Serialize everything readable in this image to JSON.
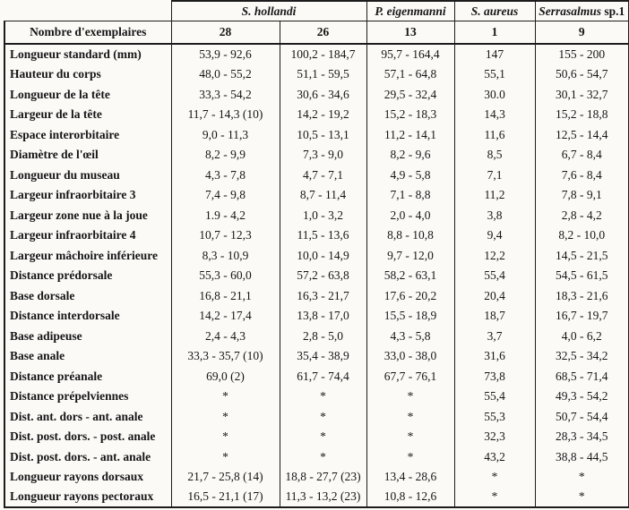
{
  "table": {
    "species_header": [
      {
        "italic": "S. hollandi",
        "plain": "",
        "span": 2
      },
      {
        "italic": "P. eigenmanni",
        "plain": "",
        "span": 1
      },
      {
        "italic": "S. aureus",
        "plain": "",
        "span": 1
      },
      {
        "italic": "Serrasalmus",
        "plain": " sp.1",
        "span": 1
      }
    ],
    "count_label": "Nombre d'exemplaires",
    "count_values": [
      "28",
      "26",
      "13",
      "1",
      "9"
    ],
    "rows": [
      {
        "label": "Longueur standard (mm)",
        "values": [
          "53,9 - 92,6",
          "100,2 - 184,7",
          "95,7 - 164,4",
          "147",
          "155 - 200"
        ]
      },
      {
        "label": "Hauteur du corps",
        "values": [
          "48,0 - 55,2",
          "51,1 - 59,5",
          "57,1 - 64,8",
          "55,1",
          "50,6 - 54,7"
        ]
      },
      {
        "label": "Longueur de la tête",
        "values": [
          "33,3 - 54,2",
          "30,6 - 34,6",
          "29,5 - 32,4",
          "30.0",
          "30,1 - 32,7"
        ]
      },
      {
        "label": "Largeur de la tête",
        "values": [
          "11,7 - 14,3 (10)",
          "14,2 - 19,2",
          "15,2 - 18,3",
          "14,3",
          "15,2 - 18,8"
        ]
      },
      {
        "label": "Espace interorbitaire",
        "values": [
          "9,0 - 11,3",
          "10,5 - 13,1",
          "11,2 - 14,1",
          "11,6",
          "12,5 - 14,4"
        ]
      },
      {
        "label": "Diamètre de l'œil",
        "values": [
          "8,2 - 9,9",
          "7,3 - 9,0",
          "8,2 - 9,6",
          "8,5",
          "6,7 - 8,4"
        ]
      },
      {
        "label": "Longueur du museau",
        "values": [
          "4,3 - 7,8",
          "4,7 - 7,1",
          "4,9 - 5,8",
          "7,1",
          "7,6 - 8,4"
        ]
      },
      {
        "label": "Largeur infraorbitaire 3",
        "values": [
          "7,4 - 9,8",
          "8,7 - 11,4",
          "7,1 - 8,8",
          "11,2",
          "7,8 - 9,1"
        ]
      },
      {
        "label": "Largeur zone nue à la joue",
        "values": [
          "1.9 - 4,2",
          "1,0 - 3,2",
          "2,0 - 4,0",
          "3,8",
          "2,8 - 4,2"
        ]
      },
      {
        "label": "Largeur infraorbitaire 4",
        "values": [
          "10,7 - 12,3",
          "11,5 - 13,6",
          "8,8 - 10,8",
          "9,4",
          "8,2 - 10,0"
        ]
      },
      {
        "label": "Largeur mâchoire inférieure",
        "values": [
          "8,3 - 10,9",
          "10,0 - 14,9",
          "9,7 - 12,0",
          "12,2",
          "14,5 - 21,5"
        ]
      },
      {
        "label": "Distance prédorsale",
        "values": [
          "55,3 - 60,0",
          "57,2 - 63,8",
          "58,2 - 63,1",
          "55,4",
          "54,5 - 61,5"
        ]
      },
      {
        "label": "Base dorsale",
        "values": [
          "16,8 - 21,1",
          "16,3 - 21,7",
          "17,6 - 20,2",
          "20,4",
          "18,3 - 21,6"
        ]
      },
      {
        "label": "Distance interdorsale",
        "values": [
          "14,2 - 17,4",
          "13,8 - 17,0",
          "15,5 - 18,9",
          "18,7",
          "16,7 - 19,7"
        ]
      },
      {
        "label": "Base adipeuse",
        "values": [
          "2,4 - 4,3",
          "2,8 - 5,0",
          "4,3 - 5,8",
          "3,7",
          "4,0 - 6,2"
        ]
      },
      {
        "label": "Base anale",
        "values": [
          "33,3 - 35,7 (10)",
          "35,4 - 38,9",
          "33,0 - 38,0",
          "31,6",
          "32,5 - 34,2"
        ]
      },
      {
        "label": "Distance préanale",
        "values": [
          "69,0 (2)",
          "61,7 - 74,4",
          "67,7 - 76,1",
          "73,8",
          "68,5 - 71,4"
        ]
      },
      {
        "label": "Distance prépelviennes",
        "values": [
          "*",
          "*",
          "*",
          "55,4",
          "49,3 - 54,2"
        ]
      },
      {
        "label": "Dist. ant. dors - ant. anale",
        "values": [
          "*",
          "*",
          "*",
          "55,3",
          "50,7 - 54,4"
        ]
      },
      {
        "label": "Dist. post. dors. - post. anale",
        "values": [
          "*",
          "*",
          "*",
          "32,3",
          "28,3 - 34,5"
        ]
      },
      {
        "label": "Dist. post. dors. - ant. anale",
        "values": [
          "*",
          "*",
          "*",
          "43,2",
          "38,8 - 44,5"
        ]
      },
      {
        "label": "Longueur rayons dorsaux",
        "values": [
          "21,7 - 25,8 (14)",
          "18,8 - 27,7 (23)",
          "13,4 - 28,6",
          "*",
          "*"
        ]
      },
      {
        "label": "Longueur rayons pectoraux",
        "values": [
          "16,5 - 21,1 (17)",
          "11,3 - 13,2 (23)",
          "10,8 - 12,6",
          "*",
          "*"
        ]
      }
    ]
  }
}
